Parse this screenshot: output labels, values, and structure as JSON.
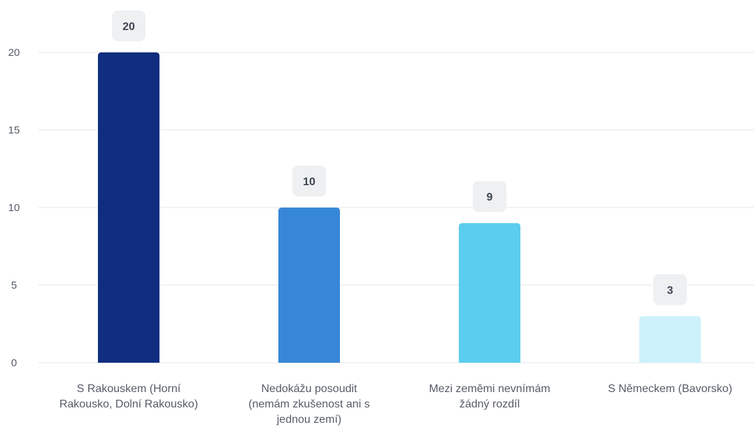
{
  "chart_data": {
    "type": "bar",
    "title": "",
    "xlabel": "",
    "ylabel": "",
    "categories": [
      [
        "S Rakouskem (Horní",
        "Rakousko, Dolní Rakousko)"
      ],
      [
        "Nedokážu posoudit",
        "(nemám zkušenost ani s",
        "jednou zemí)"
      ],
      [
        "Mezi zeměmi nevnímám",
        "žádný rozdíl"
      ],
      [
        "S Německem (Bavorsko)"
      ]
    ],
    "values": [
      20,
      10,
      9,
      3
    ],
    "data_labels": [
      "20",
      "10",
      "9",
      "3"
    ],
    "ylim": [
      0,
      20
    ],
    "yticks": [
      0,
      5,
      10,
      15,
      20
    ],
    "grid": true,
    "colors": [
      "#102d7f",
      "#3787d8",
      "#5bcdee",
      "#cdf1fa"
    ],
    "label_bubble_color": "#eef0f2",
    "label_text_color": "#3f4654",
    "axis_text_color": "#555b66",
    "grid_color": "#e3e6ea"
  }
}
